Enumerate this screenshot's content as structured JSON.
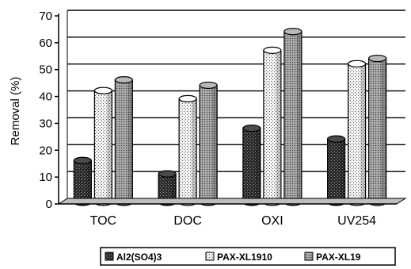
{
  "chart_data": {
    "type": "bar",
    "style": "3d-cylinder",
    "title": "",
    "xlabel": "",
    "ylabel": "Removal (%)",
    "ylim": [
      0,
      70
    ],
    "yticks": [
      0,
      10,
      20,
      30,
      40,
      50,
      60,
      70
    ],
    "grid": "horizontal",
    "legend_position": "bottom",
    "categories": [
      "TOC",
      "DOC",
      "OXI",
      "UV254"
    ],
    "series": [
      {
        "name": "Al2(SO4)3",
        "values": [
          15,
          10,
          27,
          23
        ],
        "pattern": "dark-dots",
        "color": "#1e1e1e"
      },
      {
        "name": "PAX-XL1910",
        "values": [
          41,
          38,
          56,
          51
        ],
        "pattern": "light-dots",
        "color": "#ececec"
      },
      {
        "name": "PAX-XL19",
        "values": [
          45,
          43,
          63,
          53
        ],
        "pattern": "grey-dots",
        "color": "#8c8c8c"
      }
    ]
  }
}
